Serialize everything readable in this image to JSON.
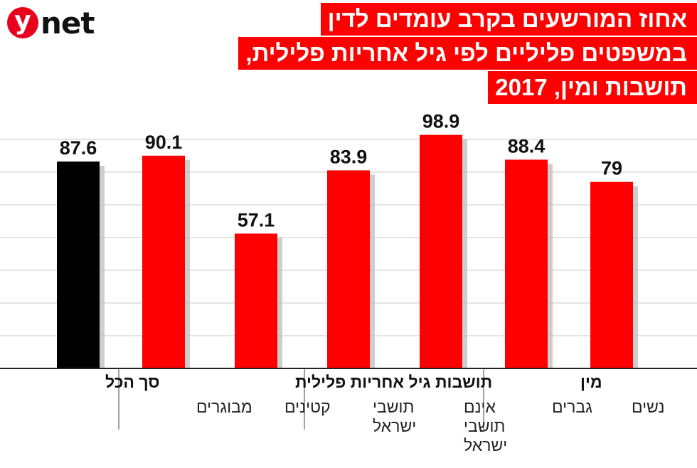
{
  "logo": {
    "letter": "y",
    "word": "net"
  },
  "title_lines": [
    "אחוז המורשעים בקרב עומדים לדין",
    "במשפטים פליליים לפי גיל אחריות פלילית,",
    "תושבות ומין, 2017"
  ],
  "chart_data": {
    "type": "bar",
    "title": "אחוז המורשעים בקרב עומדים לדין במשפטים פליליים לפי גיל אחריות פלילית, תושבות ומין, 2017",
    "ylim": [
      0,
      100
    ],
    "grid": true,
    "categories": [
      "סך הכל",
      "מבוגרים",
      "קטינים",
      "תושבי ישראל",
      "אינם תושבי ישראל",
      "גברים",
      "נשים"
    ],
    "category_lines": [
      [
        "סך הכל"
      ],
      [
        "מבוגרים"
      ],
      [
        "קטינים"
      ],
      [
        "תושבי",
        "ישראל"
      ],
      [
        "אינם",
        "תושבי",
        "ישראל"
      ],
      [
        "גברים"
      ],
      [
        "נשים"
      ]
    ],
    "values": [
      87.6,
      90.1,
      57.1,
      83.9,
      98.9,
      88.4,
      79
    ],
    "value_labels": [
      "87.6",
      "90.1",
      "57.1",
      "83.9",
      "98.9",
      "88.4",
      "79"
    ],
    "groups": [
      {
        "label": "סך הכל",
        "members": [
          0
        ]
      },
      {
        "label": "גיל אחריות פלילית",
        "members": [
          1,
          2
        ]
      },
      {
        "label": "תושבות",
        "members": [
          3,
          4
        ]
      },
      {
        "label": "מין",
        "members": [
          5,
          6
        ]
      }
    ],
    "colors": {
      "total": "#000000",
      "bar": "#ff0000",
      "shadow": "#bdbdbd",
      "grid": "#c8c8c8",
      "axis": "#222222"
    }
  }
}
